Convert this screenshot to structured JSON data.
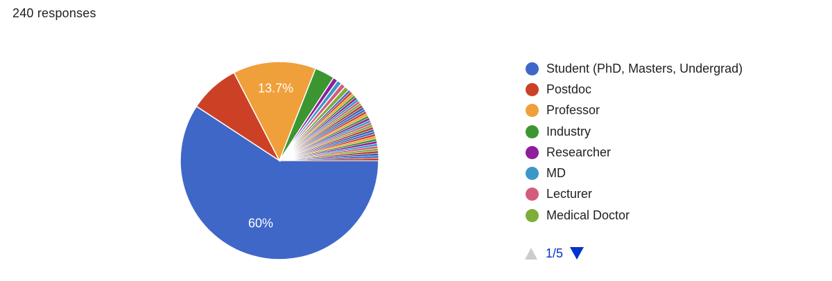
{
  "response_count": "240 responses",
  "chart_data": {
    "type": "pie",
    "slices": [
      {
        "label": "Student (PhD, Masters, Undergrad)",
        "value": 60,
        "color": "#3f67c8",
        "data_label": "60%"
      },
      {
        "label": "Postdoc",
        "value": 8.3,
        "color": "#cc4125",
        "data_label": ""
      },
      {
        "label": "Professor",
        "value": 13.7,
        "color": "#f0a03a",
        "data_label": "13.7%"
      },
      {
        "label": "Industry",
        "value": 3.3,
        "color": "#3b9632",
        "data_label": ""
      },
      {
        "label": "Researcher",
        "value": 0.8,
        "color": "#8e1e9a",
        "data_label": ""
      },
      {
        "label": "MD",
        "value": 0.8,
        "color": "#3a98c6",
        "data_label": ""
      },
      {
        "label": "Lecturer",
        "value": 0.8,
        "color": "#d35c7e",
        "data_label": ""
      },
      {
        "label": "Medical Doctor",
        "value": 0.8,
        "color": "#7fad3a",
        "data_label": ""
      }
    ],
    "other_slice_count": 32,
    "other_slice_value_each": 0.4,
    "other_slice_colors": [
      "#3f67c8",
      "#cc4125",
      "#f0a03a",
      "#3b9632",
      "#8e1e9a",
      "#3a98c6",
      "#d35c7e",
      "#7fad3a",
      "#b33a3a",
      "#3a5fa0"
    ],
    "legend": {
      "items": [
        {
          "label": "Student (PhD, Masters, Undergrad)",
          "color": "#3f67c8"
        },
        {
          "label": "Postdoc",
          "color": "#cc4125"
        },
        {
          "label": "Professor",
          "color": "#f0a03a"
        },
        {
          "label": "Industry",
          "color": "#3b9632"
        },
        {
          "label": "Researcher",
          "color": "#8e1e9a"
        },
        {
          "label": "MD",
          "color": "#3a98c6"
        },
        {
          "label": "Lecturer",
          "color": "#d35c7e"
        },
        {
          "label": "Medical Doctor",
          "color": "#7fad3a"
        }
      ],
      "placement": "right"
    },
    "pager": {
      "text": "1/5",
      "up_color": "#cccccc",
      "down_color": "#0033cc"
    }
  }
}
